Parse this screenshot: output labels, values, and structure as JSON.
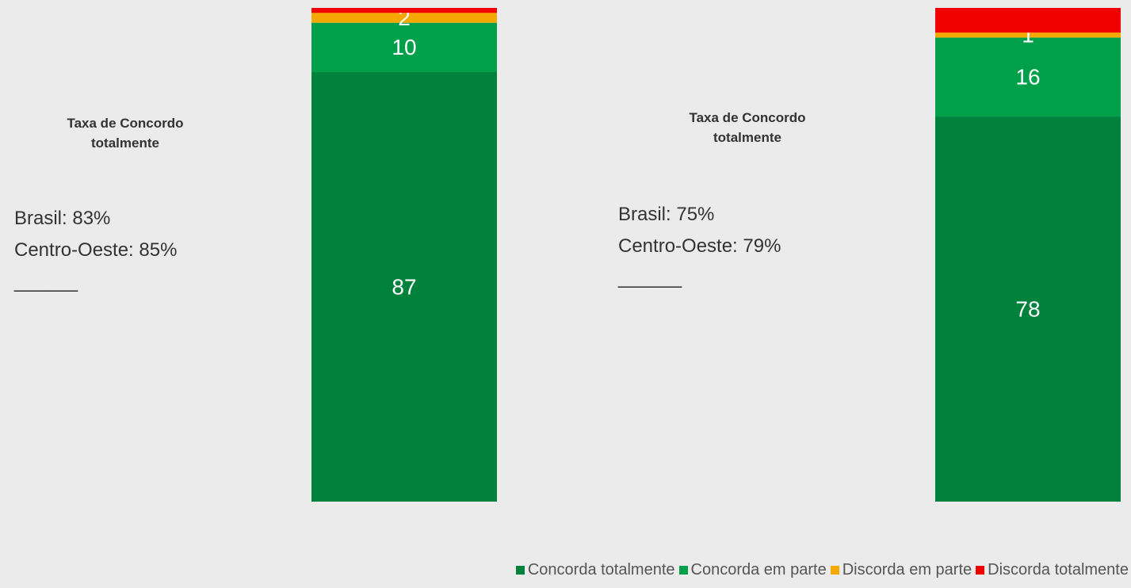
{
  "chart_data": {
    "type": "bar",
    "stacked": true,
    "categories": [
      null,
      null
    ],
    "ylim": [
      0,
      100
    ],
    "series": [
      {
        "name": "Concorda totalmente",
        "color": "#00823c",
        "values": [
          87,
          78
        ],
        "show_labels": true
      },
      {
        "name": "Concorda em parte",
        "color": "#00a04a",
        "values": [
          10,
          16
        ],
        "show_labels": true
      },
      {
        "name": "Discorda em parte",
        "color": "#f5a800",
        "values": [
          2,
          1
        ],
        "show_labels": true
      },
      {
        "name": "Discorda totalmente",
        "color": "#f00000",
        "values": [
          1,
          5
        ],
        "show_labels": false
      }
    ],
    "annotations": [
      {
        "title": "Taxa de Concordo totalmente",
        "lines": [
          "Brasil: 83%",
          "Centro-Oeste: 85%",
          "______"
        ]
      },
      {
        "title": "Taxa de Concordo totalmente",
        "lines": [
          "Brasil: 75%",
          "Centro-Oeste: 79%",
          "______"
        ]
      }
    ],
    "legend": "bottom-right"
  }
}
